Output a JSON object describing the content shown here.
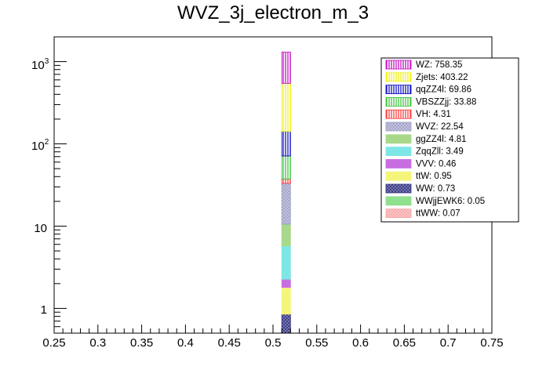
{
  "chart_data": {
    "type": "bar",
    "stacked": true,
    "title": "WVZ_3j_electron_m_3",
    "xlabel": "",
    "ylabel": "",
    "xlim": [
      0.25,
      0.75
    ],
    "ylim": [
      0.5,
      2000
    ],
    "yscale": "log",
    "bin": [
      0.51,
      0.52
    ],
    "x_ticks": [
      "0.25",
      "0.3",
      "0.35",
      "0.4",
      "0.45",
      "0.5",
      "0.55",
      "0.6",
      "0.65",
      "0.7",
      "0.75"
    ],
    "y_tick_labels": {
      "y1": "1",
      "y10": "10",
      "y100_base": "10",
      "y100_exp": "2",
      "y1000_base": "10",
      "y1000_exp": "3"
    },
    "legend_position": "top-right",
    "series": [
      {
        "name": "ttWW",
        "value": 0.07,
        "label": "ttWW: 0.07",
        "color": "#f7a6a6",
        "pattern": "cross"
      },
      {
        "name": "WWjjEWK6",
        "value": 0.05,
        "label": "WWjjEWK6: 0.05",
        "color": "#8fe08f",
        "pattern": "solid"
      },
      {
        "name": "WW",
        "value": 0.73,
        "label": "WW: 0.73",
        "color": "#2f2f80",
        "pattern": "cross"
      },
      {
        "name": "ttW",
        "value": 0.95,
        "label": "ttW: 0.95",
        "color": "#f5f57a",
        "pattern": "solid"
      },
      {
        "name": "VVV",
        "value": 0.46,
        "label": "VVV: 0.46",
        "color": "#c86ee0",
        "pattern": "solid"
      },
      {
        "name": "ZqqZll",
        "value": 3.49,
        "label": "ZqqZll: 3.49",
        "color": "#7fe6e6",
        "pattern": "solid"
      },
      {
        "name": "ggZZ4l",
        "value": 4.81,
        "label": "ggZZ4l: 4.81",
        "color": "#a8d88a",
        "pattern": "solid"
      },
      {
        "name": "WVZ",
        "value": 22.54,
        "label": "WVZ: 22.54",
        "color": "#a0a0c8",
        "pattern": "cross"
      },
      {
        "name": "VH",
        "value": 4.31,
        "label": "VH: 4.31",
        "color": "#ff3030",
        "pattern": "vlines"
      },
      {
        "name": "VBSZZjj",
        "value": 33.88,
        "label": "VBSZZjj: 33.88",
        "color": "#30c030",
        "pattern": "vlines"
      },
      {
        "name": "qqZZ4l",
        "value": 69.86,
        "label": "qqZZ4l: 69.86",
        "color": "#0000c0",
        "pattern": "vlines"
      },
      {
        "name": "Zjets",
        "value": 403.22,
        "label": "Zjets: 403.22",
        "color": "#f0f000",
        "pattern": "vlines"
      },
      {
        "name": "WZ",
        "value": 758.35,
        "label": "WZ: 758.35",
        "color": "#c000c0",
        "pattern": "vlines"
      }
    ]
  }
}
